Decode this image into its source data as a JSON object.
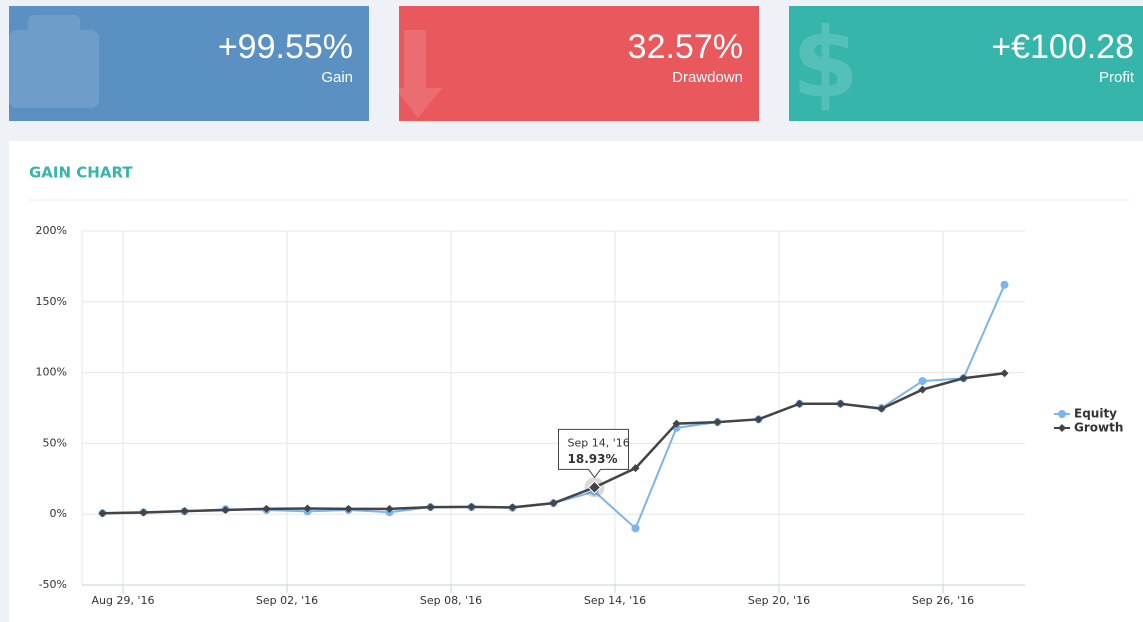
{
  "cards": [
    {
      "value": "+99.55%",
      "label": "Gain",
      "color": "#5a90c2"
    },
    {
      "value": "32.57%",
      "label": "Drawdown",
      "color": "#e9585d"
    },
    {
      "value": "+€100.28",
      "label": "Profit",
      "color": "#36b5ab"
    }
  ],
  "chart_data": {
    "type": "line",
    "title": "GAIN CHART",
    "x": [
      0,
      1,
      2,
      3,
      4,
      5,
      6,
      7,
      8,
      9,
      10,
      11,
      12,
      13,
      14,
      15,
      16,
      17,
      18,
      19,
      20,
      21,
      22
    ],
    "xlim": [
      -0.5,
      22.5
    ],
    "xticks": [
      {
        "value": 0.5,
        "label": "Aug 29, '16"
      },
      {
        "value": 4.5,
        "label": "Sep 02, '16"
      },
      {
        "value": 8.5,
        "label": "Sep 08, '16"
      },
      {
        "value": 12.5,
        "label": "Sep 14, '16"
      },
      {
        "value": 16.5,
        "label": "Sep 20, '16"
      },
      {
        "value": 20.5,
        "label": "Sep 26, '16"
      }
    ],
    "ylim": [
      -50,
      200
    ],
    "yticks": [
      {
        "value": -50,
        "label": "-50%"
      },
      {
        "value": 0,
        "label": "0%"
      },
      {
        "value": 50,
        "label": "50%"
      },
      {
        "value": 100,
        "label": "100%"
      },
      {
        "value": 150,
        "label": "150%"
      },
      {
        "value": 200,
        "label": "200%"
      }
    ],
    "grid": true,
    "legend": "right",
    "series": [
      {
        "name": "Equity",
        "color": "#7cb5ec",
        "marker": "circle",
        "values": [
          0.7,
          1.4,
          2,
          3.5,
          3,
          2,
          3,
          1.4,
          5,
          5,
          4.5,
          7.8,
          16,
          -10,
          61,
          65,
          67,
          78,
          78,
          75,
          94,
          96,
          162
        ]
      },
      {
        "name": "Growth",
        "color": "#434348",
        "marker": "diamond",
        "values": [
          0.7,
          1.2,
          2.2,
          3,
          3.8,
          4,
          3.8,
          3.8,
          5,
          5.2,
          4.8,
          7.8,
          18.93,
          32.5,
          64,
          65,
          67,
          78,
          78,
          74.5,
          88,
          96,
          99.55
        ]
      }
    ],
    "tooltip": {
      "x_label": "Sep 14, '16",
      "value_label": "18.93%"
    }
  }
}
